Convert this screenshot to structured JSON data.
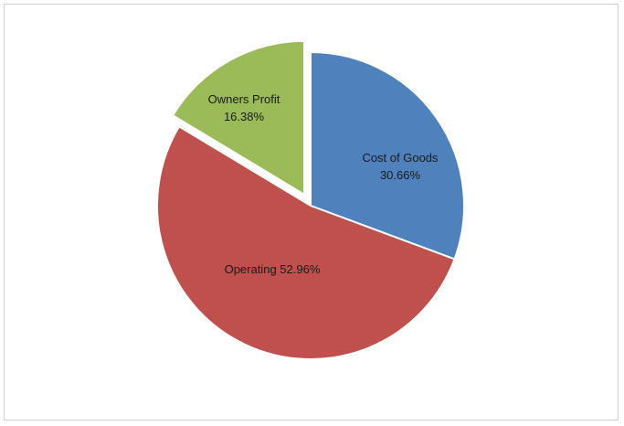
{
  "chart_data": {
    "type": "pie",
    "title": "",
    "slices": [
      {
        "label": "Cost of Goods",
        "value": 30.66,
        "value_label": "30.66%",
        "color": "#4f81bd",
        "exploded": false
      },
      {
        "label": "Operating",
        "value": 52.96,
        "value_label": "52.96%",
        "color": "#c0504d",
        "exploded": false
      },
      {
        "label": "Owners Profit",
        "value": 16.38,
        "value_label": "16.38%",
        "color": "#9bbb59",
        "exploded": true
      }
    ],
    "start_angle": "12 o'clock",
    "direction": "clockwise",
    "legend": "none",
    "data_labels": "inside"
  }
}
